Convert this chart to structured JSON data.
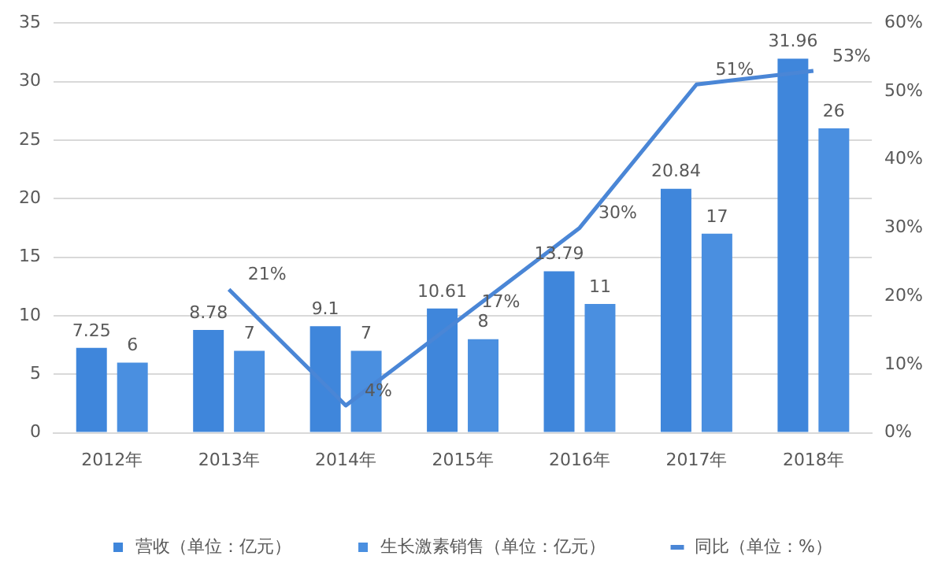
{
  "chart_data": {
    "type": "bar",
    "categories": [
      "2012年",
      "2013年",
      "2014年",
      "2015年",
      "2016年",
      "2017年",
      "2018年"
    ],
    "series": [
      {
        "name": "营收（单位：亿元）",
        "color": "#3f86db",
        "values": [
          7.25,
          8.78,
          9.1,
          10.61,
          13.79,
          20.84,
          31.96
        ]
      },
      {
        "name": "生长激素销售（单位：亿元）",
        "color": "#4a8fe0",
        "values": [
          6,
          7,
          7,
          8,
          11,
          17,
          26
        ]
      },
      {
        "name": "同比（单位：%）",
        "type": "line",
        "axis": "y2",
        "color": "#4a86d6",
        "marker": "none",
        "values": [
          null,
          21,
          4,
          17,
          30,
          51,
          53
        ],
        "value_labels": [
          null,
          "21%",
          "4%",
          "17%",
          "30%",
          "51%",
          "53%"
        ]
      }
    ],
    "ylim": [
      0,
      35
    ],
    "yticks": [
      0,
      5,
      10,
      15,
      20,
      25,
      30,
      35
    ],
    "y2lim": [
      0,
      60
    ],
    "y2ticks": [
      {
        "value": 0,
        "label": "0%"
      },
      {
        "value": 10,
        "label": "10%"
      },
      {
        "value": 20,
        "label": "20%"
      },
      {
        "value": 30,
        "label": "30%"
      },
      {
        "value": 40,
        "label": "40%"
      },
      {
        "value": 50,
        "label": "50%"
      },
      {
        "value": 60,
        "label": "60%"
      }
    ],
    "grid": "y",
    "legend": "bottom",
    "data_labels": true
  }
}
